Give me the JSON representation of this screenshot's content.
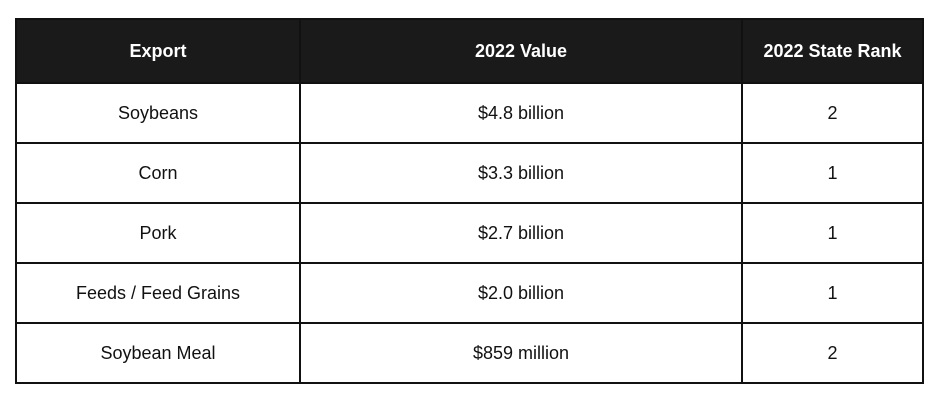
{
  "table": {
    "headers": [
      "Export",
      "2022 Value",
      "2022 State Rank"
    ],
    "rows": [
      [
        "Soybeans",
        "$4.8 billion",
        "2"
      ],
      [
        "Corn",
        "$3.3 billion",
        "1"
      ],
      [
        "Pork",
        "$2.7 billion",
        "1"
      ],
      [
        "Feeds / Feed Grains",
        "$2.0 billion",
        "1"
      ],
      [
        "Soybean Meal",
        "$859 million",
        "2"
      ]
    ]
  }
}
